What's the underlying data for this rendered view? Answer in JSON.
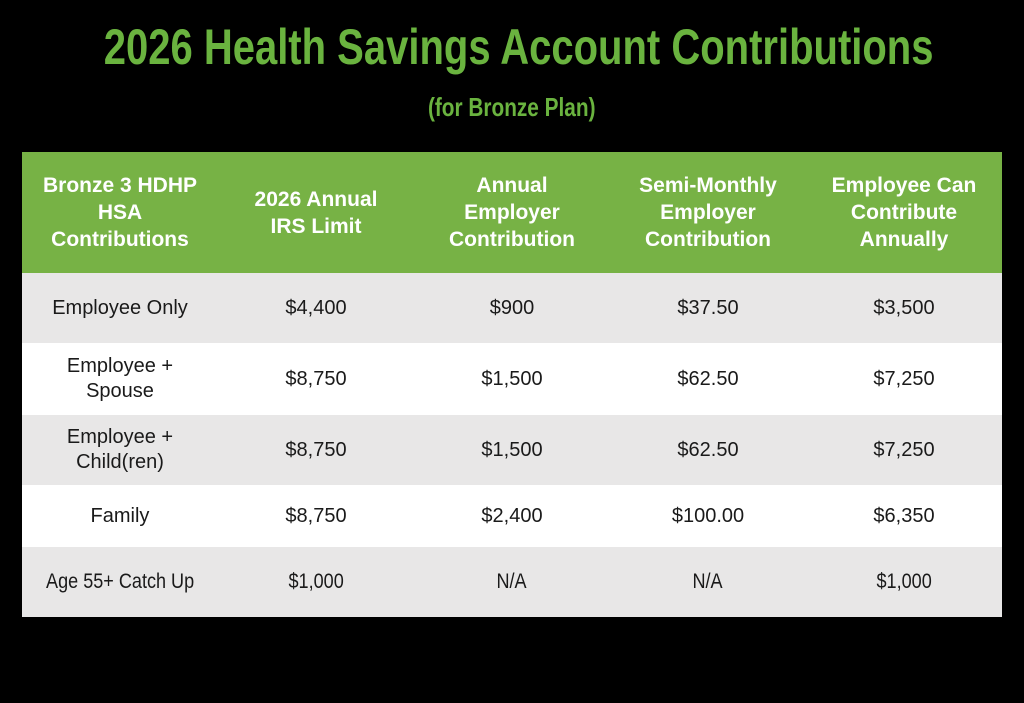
{
  "page": {
    "background_color": "#000000"
  },
  "title": {
    "text": "2026 Health Savings Account Contributions",
    "color": "#6ab33f"
  },
  "subtitle": {
    "text": "(for Bronze Plan)",
    "color": "#6ab33f"
  },
  "table": {
    "colors": {
      "header_bg": "#77b245",
      "header_text": "#ffffff",
      "row_odd_bg": "#e8e7e7",
      "row_even_bg": "#ffffff",
      "body_text": "#1a1a1a"
    },
    "headers": [
      "Bronze 3 HDHP\nHSA\nContributions",
      "2026 Annual\nIRS Limit",
      "Annual\nEmployer\nContribution",
      "Semi-Monthly\nEmployer\nContribution",
      "Employee Can\nContribute\nAnnually"
    ],
    "rows": [
      {
        "label": "Employee Only",
        "values": [
          "$4,400",
          "$900",
          "$37.50",
          "$3,500"
        ]
      },
      {
        "label": "Employee +\nSpouse",
        "values": [
          "$8,750",
          "$1,500",
          "$62.50",
          "$7,250"
        ]
      },
      {
        "label": "Employee +\nChild(ren)",
        "values": [
          "$8,750",
          "$1,500",
          "$62.50",
          "$7,250"
        ]
      },
      {
        "label": "Family",
        "values": [
          "$8,750",
          "$2,400",
          "$100.00",
          "$6,350"
        ]
      },
      {
        "label": "Age 55+ Catch Up",
        "values": [
          "$1,000",
          "N/A",
          "N/A",
          "$1,000"
        ]
      }
    ]
  },
  "chart_data": {
    "type": "table",
    "title": "2026 Health Savings Account Contributions",
    "subtitle": "(for Bronze Plan)",
    "columns": [
      "Bronze 3 HDHP HSA Contributions",
      "2026 Annual IRS Limit",
      "Annual Employer Contribution",
      "Semi-Monthly Employer Contribution",
      "Employee Can Contribute Annually"
    ],
    "rows": [
      [
        "Employee Only",
        "$4,400",
        "$900",
        "$37.50",
        "$3,500"
      ],
      [
        "Employee + Spouse",
        "$8,750",
        "$1,500",
        "$62.50",
        "$7,250"
      ],
      [
        "Employee + Child(ren)",
        "$8,750",
        "$1,500",
        "$62.50",
        "$7,250"
      ],
      [
        "Family",
        "$8,750",
        "$2,400",
        "$100.00",
        "$6,350"
      ],
      [
        "Age 55+ Catch Up",
        "$1,000",
        "N/A",
        "N/A",
        "$1,000"
      ]
    ]
  }
}
